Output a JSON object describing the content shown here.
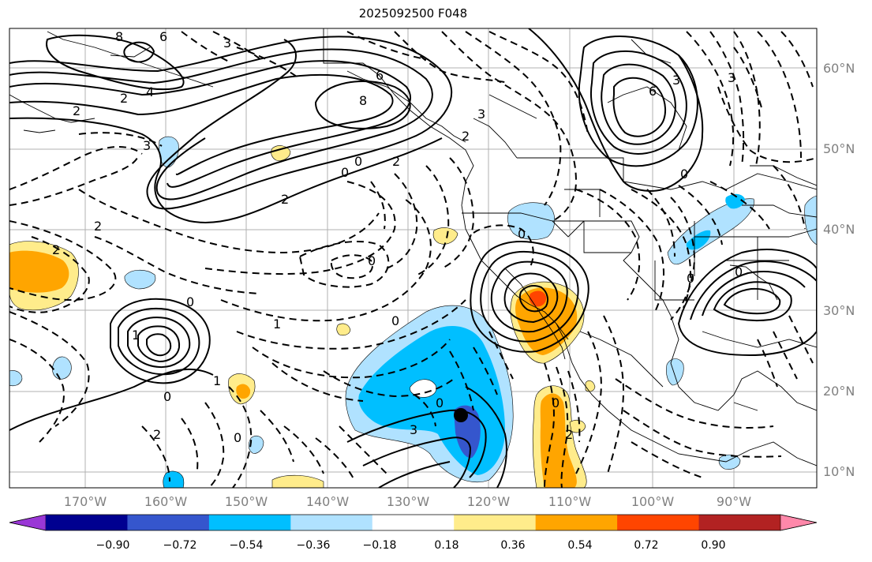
{
  "title": "2025092500 F048",
  "lat_labels": [
    "60°N",
    "50°N",
    "40°N",
    "30°N",
    "20°N",
    "10°N"
  ],
  "lon_labels": [
    "170°W",
    "160°W",
    "150°W",
    "140°W",
    "130°W",
    "120°W",
    "110°W",
    "100°W",
    "90°W"
  ],
  "colorbar": {
    "ticks": [
      "−0.90",
      "−0.72",
      "−0.54",
      "−0.36",
      "−0.18",
      "0.18",
      "0.36",
      "0.54",
      "0.72",
      "0.90"
    ],
    "colors": [
      "#9a37d6",
      "#000090",
      "#3556cd",
      "#00bfff",
      "#b0e2ff",
      "#ffffff",
      "#ffec8b",
      "#ffa500",
      "#ff4500",
      "#b22222",
      "#ff88aa"
    ]
  },
  "contour_labels": [
    "8",
    "6",
    "3",
    "4",
    "2",
    "2",
    "8",
    "6",
    "3",
    "2",
    "6",
    "3",
    "0",
    "0",
    "2",
    "2",
    "2",
    "0",
    "0",
    "0",
    "3",
    "2",
    "3",
    "1",
    "0",
    "0",
    "2",
    "1",
    "0",
    "1",
    "0",
    "0",
    "2",
    "0",
    "0",
    "0",
    "3"
  ],
  "map": {
    "background": "#ffffff",
    "grid_color": "#b0b0b0",
    "storm_marker": "black-dot"
  }
}
